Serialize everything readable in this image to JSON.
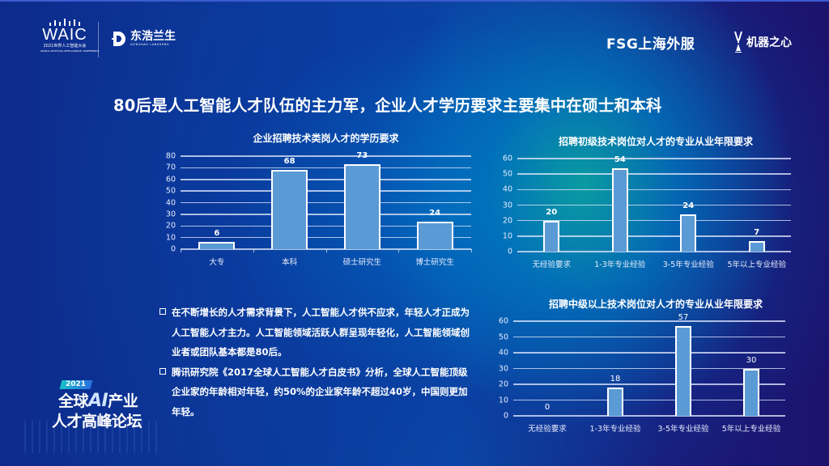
{
  "header": {
    "logos": {
      "waic": {
        "name": "WAIC",
        "sub": "2021世界人工智能大会",
        "sub_en": "WORLD ARTIFICIAL INTELLIGENCE CONFERENCE"
      },
      "donghao": {
        "name": "东浩兰生",
        "sub": "DONGHAO LANSHENG"
      },
      "fsg": {
        "name": "FSG上海外服"
      },
      "jiqizhixin": {
        "name": "机器之心",
        "sub": "Synced"
      }
    }
  },
  "page_title": "80后是人工智能人才队伍的主力军，企业人才学历要求主要集中在硕士和本科",
  "bullets": [
    {
      "text": "在不断增长的人才需求背景下，人工智能人才供不应求，年轻人才正成为人工智能人才主力。人工智能领域活跃人群呈现年轻化，人工智能领域创业者或团队基本都是80后。"
    },
    {
      "text": "腾讯研究院《2017全球人工智能人才白皮书》分析，全球人工智能顶级企业家的年龄相对年轻，约50%的企业家年龄不超过40岁，中国则更加年轻。"
    }
  ],
  "forum": {
    "year": "2021",
    "line1_a": "全球",
    "line1_ai": "AI",
    "line1_b": "产业",
    "line2": "人才高峰论坛"
  },
  "colors": {
    "bar_fill": "#5b9bd5",
    "bar_border": "#ffffff",
    "bg_dark": "#1b146d",
    "bg_glow": "#0aaaa0"
  },
  "chart_data": [
    {
      "type": "bar",
      "title": "企业招聘技术类岗人才的学历要求",
      "categories": [
        "大专",
        "本科",
        "硕士研究生",
        "博士研究生"
      ],
      "values": [
        6,
        68,
        73,
        24
      ],
      "value_labels": [
        "6",
        "68",
        "73",
        "24"
      ],
      "xlabel": "",
      "ylabel": "",
      "ylim": [
        0,
        80
      ],
      "yticks": [
        "0",
        "10",
        "20",
        "30",
        "40",
        "50",
        "60",
        "70",
        "80"
      ],
      "grid": true,
      "legend": "none"
    },
    {
      "type": "bar",
      "title": "招聘初级技术岗位对人才的专业从业年限要求",
      "categories": [
        "无经验要求",
        "1-3年专业经验",
        "3-5年专业经验",
        "5年以上专业经验"
      ],
      "values": [
        20,
        54,
        24,
        7
      ],
      "value_labels": [
        "20",
        "54",
        "24",
        "7"
      ],
      "xlabel": "",
      "ylabel": "",
      "ylim": [
        0,
        60
      ],
      "yticks": [
        "0",
        "10",
        "20",
        "30",
        "40",
        "50",
        "60"
      ],
      "grid": true,
      "legend": "none"
    },
    {
      "type": "bar",
      "title": "招聘中级以上技术岗位对人才的专业从业年限要求",
      "categories": [
        "无经验要求",
        "1-3年专业经验",
        "3-5年专业经验",
        "5年以上专业经验"
      ],
      "values": [
        0,
        18,
        57,
        30
      ],
      "value_labels": [
        "0",
        "18",
        "57",
        "30"
      ],
      "xlabel": "",
      "ylabel": "",
      "ylim": [
        0,
        60
      ],
      "yticks": [
        "0",
        "10",
        "20",
        "30",
        "40",
        "50",
        "60"
      ],
      "grid": true,
      "legend": "none"
    }
  ]
}
